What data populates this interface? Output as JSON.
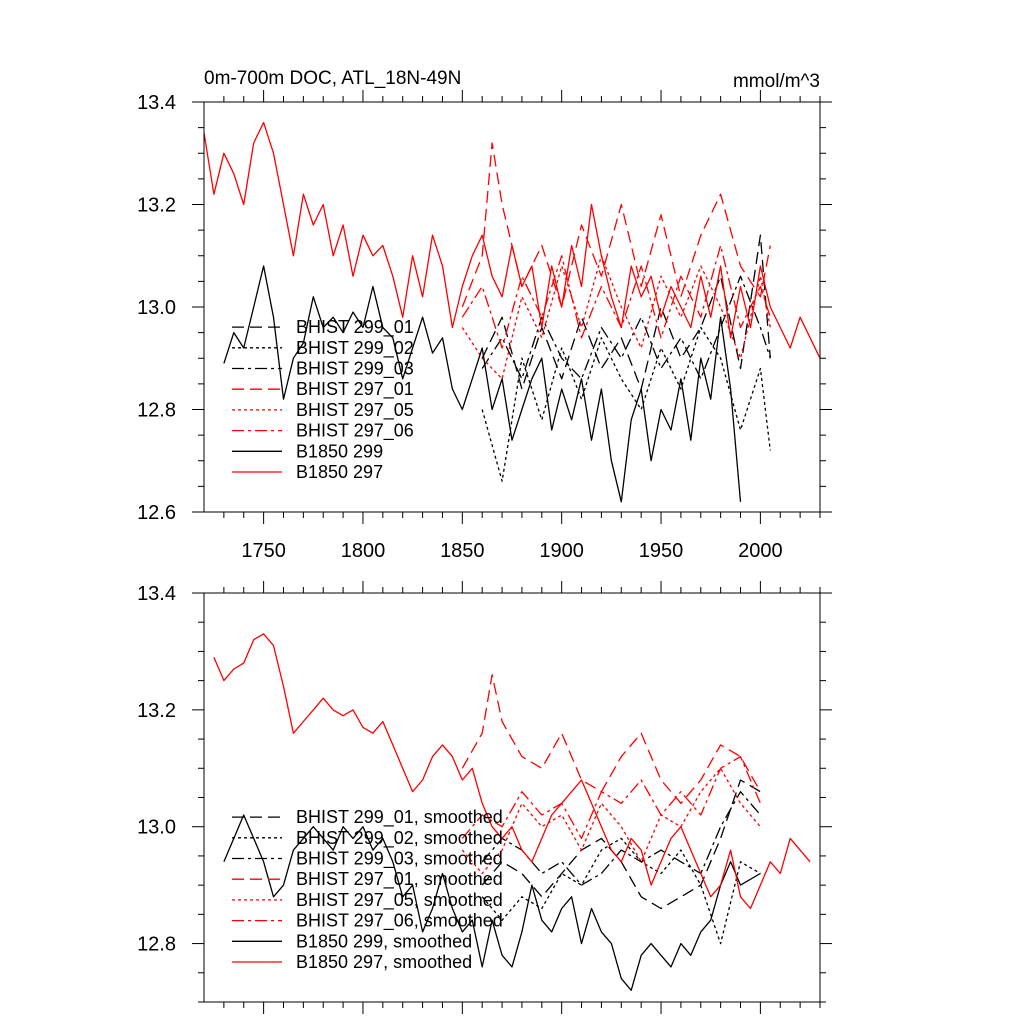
{
  "figure": {
    "title_left": "0m-700m DOC, ATL_18N-49N",
    "title_right": "mmol/m^3"
  },
  "colors": {
    "black": "#000000",
    "red": "#ff0000"
  },
  "chart_data": [
    {
      "type": "line",
      "panel": "top",
      "title": "0m-700m DOC, ATL_18N-49N",
      "units": "mmol/m^3",
      "xlim": [
        1720,
        2030
      ],
      "ylim": [
        12.6,
        13.4
      ],
      "xticks": [
        1750,
        1800,
        1850,
        1900,
        1950,
        2000
      ],
      "yticks": [
        12.6,
        12.8,
        13.0,
        13.2,
        13.4
      ],
      "ytick_labels": [
        "12.6",
        "12.8",
        "13.0",
        "13.2",
        "13.4"
      ],
      "xtick_labels": [
        "1750",
        "1800",
        "1850",
        "1900",
        "1950",
        "2000"
      ],
      "legend_position": "lower-left",
      "series": [
        {
          "name": "BHIST 299_01",
          "color": "#000000",
          "dash": "dashed",
          "x": [
            1860,
            1870,
            1880,
            1890,
            1900,
            1910,
            1920,
            1930,
            1940,
            1950,
            1960,
            1970,
            1980,
            1990,
            2000,
            2005
          ],
          "y": [
            12.9,
            12.98,
            12.84,
            12.96,
            12.86,
            12.98,
            12.88,
            12.94,
            12.84,
            13.0,
            12.9,
            12.96,
            13.06,
            12.88,
            13.14,
            12.9
          ]
        },
        {
          "name": "BHIST 299_02",
          "color": "#000000",
          "dash": "dotted",
          "x": [
            1860,
            1870,
            1880,
            1890,
            1900,
            1910,
            1920,
            1930,
            1940,
            1950,
            1960,
            1970,
            1980,
            1990,
            2000,
            2005
          ],
          "y": [
            12.8,
            12.66,
            12.9,
            12.78,
            12.92,
            12.82,
            12.94,
            12.86,
            12.8,
            12.92,
            12.84,
            12.96,
            12.9,
            12.76,
            12.88,
            12.72
          ]
        },
        {
          "name": "BHIST 299_03",
          "color": "#000000",
          "dash": "dashdot",
          "x": [
            1860,
            1870,
            1880,
            1890,
            1900,
            1910,
            1920,
            1930,
            1940,
            1950,
            1960,
            1970,
            1980,
            1990,
            2000,
            2005
          ],
          "y": [
            12.88,
            12.94,
            12.86,
            12.98,
            12.9,
            12.86,
            12.96,
            12.9,
            12.98,
            12.88,
            12.94,
            12.86,
            12.96,
            13.06,
            12.96,
            12.9
          ]
        },
        {
          "name": "BHIST 297_01",
          "color": "#ff0000",
          "dash": "dashed",
          "x": [
            1850,
            1860,
            1865,
            1870,
            1880,
            1890,
            1900,
            1910,
            1920,
            1930,
            1940,
            1950,
            1960,
            1970,
            1980,
            1990,
            2000,
            2005
          ],
          "y": [
            13.0,
            13.1,
            13.32,
            13.2,
            13.04,
            13.12,
            13.0,
            13.16,
            13.06,
            13.2,
            13.04,
            13.18,
            13.02,
            13.14,
            13.22,
            13.08,
            13.02,
            13.12
          ]
        },
        {
          "name": "BHIST 297_05",
          "color": "#ff0000",
          "dash": "dotted",
          "x": [
            1850,
            1860,
            1870,
            1880,
            1890,
            1900,
            1910,
            1920,
            1930,
            1940,
            1950,
            1960,
            1970,
            1980,
            1990,
            2000,
            2005
          ],
          "y": [
            12.96,
            12.9,
            12.86,
            13.02,
            12.94,
            13.08,
            12.96,
            13.1,
            13.0,
            12.92,
            13.06,
            12.98,
            13.08,
            13.0,
            12.9,
            13.06,
            12.96
          ]
        },
        {
          "name": "BHIST 297_06",
          "color": "#ff0000",
          "dash": "dashdot",
          "x": [
            1850,
            1860,
            1870,
            1880,
            1890,
            1900,
            1910,
            1920,
            1930,
            1940,
            1950,
            1960,
            1970,
            1980,
            1990,
            2000,
            2005
          ],
          "y": [
            12.98,
            13.04,
            12.92,
            13.06,
            12.98,
            13.1,
            12.94,
            13.04,
            12.96,
            13.08,
            12.94,
            13.06,
            12.98,
            13.12,
            12.96,
            13.04,
            12.98
          ]
        },
        {
          "name": "B1850 299",
          "color": "#000000",
          "dash": "solid",
          "x": [
            1730,
            1735,
            1740,
            1745,
            1750,
            1755,
            1760,
            1765,
            1770,
            1775,
            1780,
            1785,
            1790,
            1795,
            1800,
            1805,
            1810,
            1815,
            1820,
            1825,
            1830,
            1835,
            1840,
            1845,
            1850,
            1855,
            1860,
            1865,
            1870,
            1875,
            1880,
            1885,
            1890,
            1895,
            1900,
            1905,
            1910,
            1915,
            1920,
            1925,
            1930,
            1935,
            1940,
            1945,
            1950,
            1955,
            1960,
            1965,
            1970,
            1975,
            1980,
            1985,
            1990
          ],
          "y": [
            12.89,
            12.95,
            12.92,
            13.0,
            13.08,
            12.98,
            12.82,
            12.9,
            12.93,
            13.02,
            12.96,
            12.98,
            12.95,
            12.99,
            12.96,
            13.04,
            12.96,
            12.94,
            12.86,
            12.92,
            12.98,
            12.91,
            12.94,
            12.84,
            12.8,
            12.86,
            12.92,
            12.8,
            12.86,
            12.74,
            12.8,
            12.86,
            12.9,
            12.76,
            12.84,
            12.78,
            12.86,
            12.74,
            12.84,
            12.7,
            12.62,
            12.78,
            12.84,
            12.7,
            12.8,
            12.76,
            12.86,
            12.74,
            12.9,
            12.82,
            12.98,
            12.84,
            12.62
          ]
        },
        {
          "name": "B1850 297",
          "color": "#ff0000",
          "dash": "solid",
          "x": [
            1720,
            1725,
            1730,
            1735,
            1740,
            1745,
            1750,
            1755,
            1760,
            1765,
            1770,
            1775,
            1780,
            1785,
            1790,
            1795,
            1800,
            1805,
            1810,
            1815,
            1820,
            1825,
            1830,
            1835,
            1840,
            1845,
            1850,
            1855,
            1860,
            1865,
            1870,
            1875,
            1880,
            1885,
            1890,
            1895,
            1900,
            1905,
            1910,
            1915,
            1920,
            1925,
            1930,
            1935,
            1940,
            1945,
            1950,
            1955,
            1960,
            1965,
            1970,
            1975,
            1980,
            1985,
            1990,
            1995,
            2000,
            2005,
            2010,
            2015,
            2020,
            2025,
            2030
          ],
          "y": [
            13.34,
            13.22,
            13.3,
            13.26,
            13.2,
            13.32,
            13.36,
            13.3,
            13.2,
            13.1,
            13.22,
            13.16,
            13.2,
            13.1,
            13.16,
            13.06,
            13.14,
            13.1,
            13.12,
            13.06,
            12.98,
            13.1,
            13.02,
            13.14,
            13.08,
            12.96,
            13.04,
            13.1,
            13.14,
            13.06,
            13.02,
            13.12,
            13.04,
            13.08,
            12.96,
            13.08,
            13.0,
            13.12,
            13.04,
            13.2,
            13.1,
            13.02,
            12.96,
            13.08,
            13.02,
            13.06,
            12.98,
            13.04,
            13.0,
            12.96,
            13.06,
            12.98,
            13.08,
            12.94,
            13.04,
            12.96,
            13.08,
            13.0,
            12.96,
            12.92,
            12.98,
            12.94,
            12.9
          ]
        }
      ]
    },
    {
      "type": "line",
      "panel": "bottom",
      "xlim": [
        1720,
        2030
      ],
      "ylim": [
        12.7,
        13.4
      ],
      "xticks": [
        1750,
        1800,
        1850,
        1900,
        1950,
        2000
      ],
      "yticks": [
        12.8,
        13.0,
        13.2,
        13.4
      ],
      "ytick_labels": [
        "12.8",
        "13.0",
        "13.2",
        "13.4"
      ],
      "legend_position": "lower-left",
      "series": [
        {
          "name": "BHIST 299_01, smoothed",
          "color": "#000000",
          "dash": "dashed",
          "x": [
            1860,
            1870,
            1880,
            1890,
            1900,
            1910,
            1920,
            1930,
            1940,
            1950,
            1960,
            1970,
            1980,
            1990,
            2000
          ],
          "y": [
            12.9,
            12.94,
            12.92,
            12.88,
            12.92,
            12.96,
            12.98,
            12.94,
            12.88,
            12.86,
            12.88,
            12.9,
            12.98,
            13.08,
            13.06
          ]
        },
        {
          "name": "BHIST 299_02, smoothed",
          "color": "#000000",
          "dash": "dotted",
          "x": [
            1860,
            1870,
            1880,
            1890,
            1900,
            1910,
            1920,
            1930,
            1940,
            1950,
            1960,
            1970,
            1980,
            1990,
            2000
          ],
          "y": [
            12.88,
            12.84,
            12.88,
            12.86,
            12.92,
            12.9,
            12.96,
            12.98,
            12.94,
            12.92,
            12.96,
            12.9,
            12.8,
            12.94,
            12.92
          ]
        },
        {
          "name": "BHIST 299_03, smoothed",
          "color": "#000000",
          "dash": "dashdot",
          "x": [
            1860,
            1870,
            1880,
            1890,
            1900,
            1910,
            1920,
            1930,
            1940,
            1950,
            1960,
            1970,
            1980,
            1990,
            2000
          ],
          "y": [
            12.94,
            12.98,
            12.96,
            12.92,
            12.94,
            12.9,
            12.92,
            12.96,
            12.94,
            12.96,
            12.94,
            12.92,
            13.0,
            13.06,
            13.02
          ]
        },
        {
          "name": "BHIST 297_01, smoothed",
          "color": "#ff0000",
          "dash": "dashed",
          "x": [
            1850,
            1860,
            1865,
            1870,
            1880,
            1890,
            1900,
            1910,
            1920,
            1930,
            1940,
            1950,
            1960,
            1970,
            1980,
            1990,
            2000
          ],
          "y": [
            13.1,
            13.16,
            13.26,
            13.18,
            13.12,
            13.1,
            13.16,
            13.08,
            13.06,
            13.12,
            13.16,
            13.08,
            13.04,
            13.08,
            13.14,
            13.12,
            13.06
          ]
        },
        {
          "name": "BHIST 297_05, smoothed",
          "color": "#ff0000",
          "dash": "dotted",
          "x": [
            1850,
            1860,
            1870,
            1880,
            1890,
            1900,
            1910,
            1920,
            1930,
            1940,
            1950,
            1960,
            1970,
            1980,
            1990,
            2000
          ],
          "y": [
            12.96,
            12.92,
            12.96,
            13.04,
            13.0,
            13.02,
            12.96,
            13.04,
            13.0,
            12.94,
            13.02,
            13.0,
            13.06,
            13.1,
            13.04,
            13.0
          ]
        },
        {
          "name": "BHIST 297_06, smoothed",
          "color": "#ff0000",
          "dash": "dashdot",
          "x": [
            1850,
            1860,
            1870,
            1880,
            1890,
            1900,
            1910,
            1920,
            1930,
            1940,
            1950,
            1960,
            1970,
            1980,
            1990,
            2000
          ],
          "y": [
            12.98,
            13.02,
            13.0,
            13.06,
            13.02,
            13.04,
            12.98,
            13.06,
            13.04,
            13.08,
            13.02,
            13.06,
            13.02,
            13.1,
            13.12,
            13.04
          ]
        },
        {
          "name": "B1850 299, smoothed",
          "color": "#000000",
          "dash": "solid",
          "x": [
            1730,
            1735,
            1740,
            1745,
            1750,
            1755,
            1760,
            1765,
            1770,
            1775,
            1780,
            1785,
            1790,
            1795,
            1800,
            1805,
            1810,
            1815,
            1820,
            1825,
            1830,
            1835,
            1840,
            1845,
            1850,
            1855,
            1860,
            1865,
            1870,
            1875,
            1880,
            1885,
            1890,
            1895,
            1900,
            1905,
            1910,
            1915,
            1920,
            1925,
            1930,
            1935,
            1940,
            1945,
            1950,
            1955,
            1960,
            1965,
            1970,
            1975,
            1980,
            1985,
            1990,
            2000
          ],
          "y": [
            12.94,
            12.98,
            13.02,
            12.98,
            12.94,
            12.88,
            12.9,
            12.96,
            12.98,
            13.0,
            12.98,
            12.96,
            13.0,
            12.98,
            13.0,
            12.96,
            12.98,
            12.94,
            12.88,
            12.9,
            12.82,
            12.86,
            12.92,
            12.86,
            12.82,
            12.84,
            12.76,
            12.84,
            12.78,
            12.76,
            12.82,
            12.9,
            12.84,
            12.82,
            12.86,
            12.88,
            12.8,
            12.86,
            12.82,
            12.8,
            12.74,
            12.72,
            12.78,
            12.8,
            12.78,
            12.76,
            12.8,
            12.78,
            12.82,
            12.84,
            12.9,
            12.94,
            12.9,
            12.92
          ]
        },
        {
          "name": "B1850 297, smoothed",
          "color": "#ff0000",
          "dash": "solid",
          "x": [
            1725,
            1730,
            1735,
            1740,
            1745,
            1750,
            1755,
            1760,
            1765,
            1770,
            1775,
            1780,
            1785,
            1790,
            1795,
            1800,
            1805,
            1810,
            1815,
            1820,
            1825,
            1830,
            1835,
            1840,
            1845,
            1850,
            1855,
            1860,
            1865,
            1870,
            1875,
            1880,
            1885,
            1890,
            1895,
            1900,
            1905,
            1910,
            1915,
            1920,
            1925,
            1930,
            1935,
            1940,
            1945,
            1950,
            1955,
            1960,
            1965,
            1970,
            1975,
            1980,
            1985,
            1990,
            1995,
            2000,
            2005,
            2010,
            2015,
            2020,
            2025
          ],
          "y": [
            13.29,
            13.25,
            13.27,
            13.28,
            13.32,
            13.33,
            13.31,
            13.24,
            13.16,
            13.18,
            13.2,
            13.22,
            13.2,
            13.19,
            13.2,
            13.17,
            13.16,
            13.18,
            13.14,
            13.1,
            13.06,
            13.08,
            13.12,
            13.14,
            13.12,
            13.08,
            13.1,
            13.04,
            13.0,
            12.98,
            13.0,
            12.96,
            12.94,
            12.98,
            13.02,
            13.04,
            13.06,
            13.08,
            13.04,
            13.0,
            12.96,
            12.94,
            12.98,
            12.96,
            12.9,
            12.94,
            12.98,
            13.0,
            12.96,
            12.92,
            12.88,
            12.9,
            12.96,
            12.88,
            12.86,
            12.9,
            12.94,
            12.92,
            12.98,
            12.96,
            12.94
          ]
        }
      ]
    }
  ]
}
